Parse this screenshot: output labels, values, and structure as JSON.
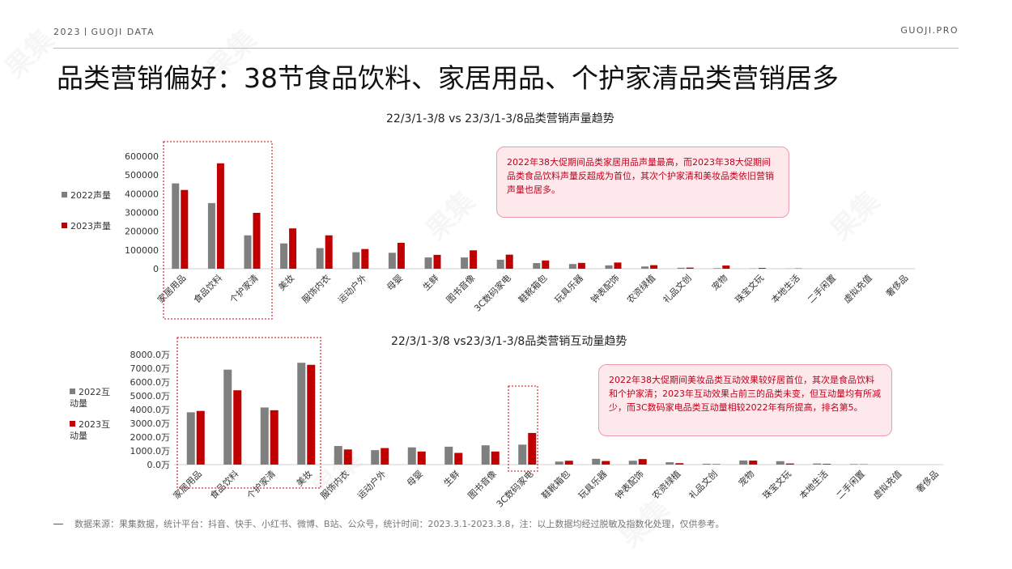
{
  "header": {
    "left_text": "2023丨GUOJI DATA",
    "right_text": "GUOJI.PRO"
  },
  "page_title": "品类营销偏好：38节食品饮料、家居用品、个护家清品类营销居多",
  "colors": {
    "series_2022": "#7f7f7f",
    "series_2023": "#c00000",
    "accent": "#e03040",
    "note_bg": "#fde8ec",
    "note_border": "#ec9cab"
  },
  "notes": {
    "note1": "2022年38大促期间品类家居用品声量最高，而2023年38大促期间品类食品饮料声量反超成为首位，其次个护家清和美妆品类依旧营销声量也居多。",
    "note2": "2022年38大促期间美妆品类互动效果较好居首位，其次是食品饮料和个护家清；2023年互动效果占前三的品类未变，但互动量均有所减少，而3C数码家电品类互动量相较2022年有所提高，排名第5。"
  },
  "footer": {
    "source": "数据来源：果集数据，统计平台：抖音、快手、小红书、微博、B站、公众号，统计时间：2023.3.1-2023.3.8，注：以上数据均经过脱敏及指数化处理，仅供参考。"
  },
  "watermark": "果集",
  "chart_data": [
    {
      "type": "bar",
      "title": "22/3/1-3/8 vs 23/3/1-3/8品类营销声量趋势",
      "categories": [
        "家居用品",
        "食品饮料",
        "个护家清",
        "美妆",
        "服饰内衣",
        "运动户外",
        "母婴",
        "生鲜",
        "图书音像",
        "3C数码家电",
        "鞋靴箱包",
        "玩具乐器",
        "钟表配饰",
        "农资绿植",
        "礼品文创",
        "宠物",
        "珠宝文玩",
        "本地生活",
        "二手闲置",
        "虚拟充值",
        "奢侈品"
      ],
      "ylim": [
        0,
        600000
      ],
      "yticks": [
        "600000",
        "500000",
        "400000",
        "300000",
        "200000",
        "100000",
        "0"
      ],
      "legend_position": "left",
      "grid": false,
      "series": [
        {
          "name": "2022声量",
          "values": [
            455000,
            350000,
            178000,
            135000,
            110000,
            88000,
            85000,
            60000,
            60000,
            48000,
            30000,
            25000,
            18000,
            12000,
            5000,
            3000,
            1500,
            1000,
            0,
            0,
            0
          ]
        },
        {
          "name": "2023声量",
          "values": [
            420000,
            562000,
            298000,
            215000,
            178000,
            105000,
            138000,
            74000,
            98000,
            75000,
            44000,
            31000,
            33000,
            19000,
            6000,
            17000,
            4000,
            1500,
            0,
            0,
            0
          ]
        }
      ]
    },
    {
      "type": "bar",
      "title": "22/3/1-3/8 vs23/3/1-3/8品类营销互动量趋势",
      "categories": [
        "家居用品",
        "食品饮料",
        "个护家清",
        "美妆",
        "服饰内衣",
        "运动户外",
        "母婴",
        "生鲜",
        "图书音像",
        "3C数码家电",
        "鞋靴箱包",
        "玩具乐器",
        "钟表配饰",
        "农资绿植",
        "礼品文创",
        "宠物",
        "珠宝文玩",
        "本地生活",
        "二手闲置",
        "虚拟充值",
        "奢侈品"
      ],
      "unit": "万",
      "ylim": [
        0,
        8000
      ],
      "yticks": [
        "8000.0万",
        "7000.0万",
        "6000.0万",
        "5000.0万",
        "4000.0万",
        "3000.0万",
        "2000.0万",
        "1000.0万",
        "0.0万"
      ],
      "legend_position": "left",
      "grid": false,
      "series": [
        {
          "name": "2022互动量",
          "values": [
            3800,
            6900,
            4150,
            7400,
            1350,
            1050,
            1250,
            1300,
            1400,
            1450,
            220,
            420,
            280,
            170,
            60,
            300,
            250,
            80,
            40,
            0,
            0
          ]
        },
        {
          "name": "2023互动量",
          "values": [
            3900,
            5400,
            3950,
            7250,
            1100,
            1200,
            950,
            850,
            950,
            2300,
            280,
            260,
            400,
            100,
            30,
            290,
            80,
            50,
            20,
            0,
            0
          ]
        }
      ]
    }
  ]
}
